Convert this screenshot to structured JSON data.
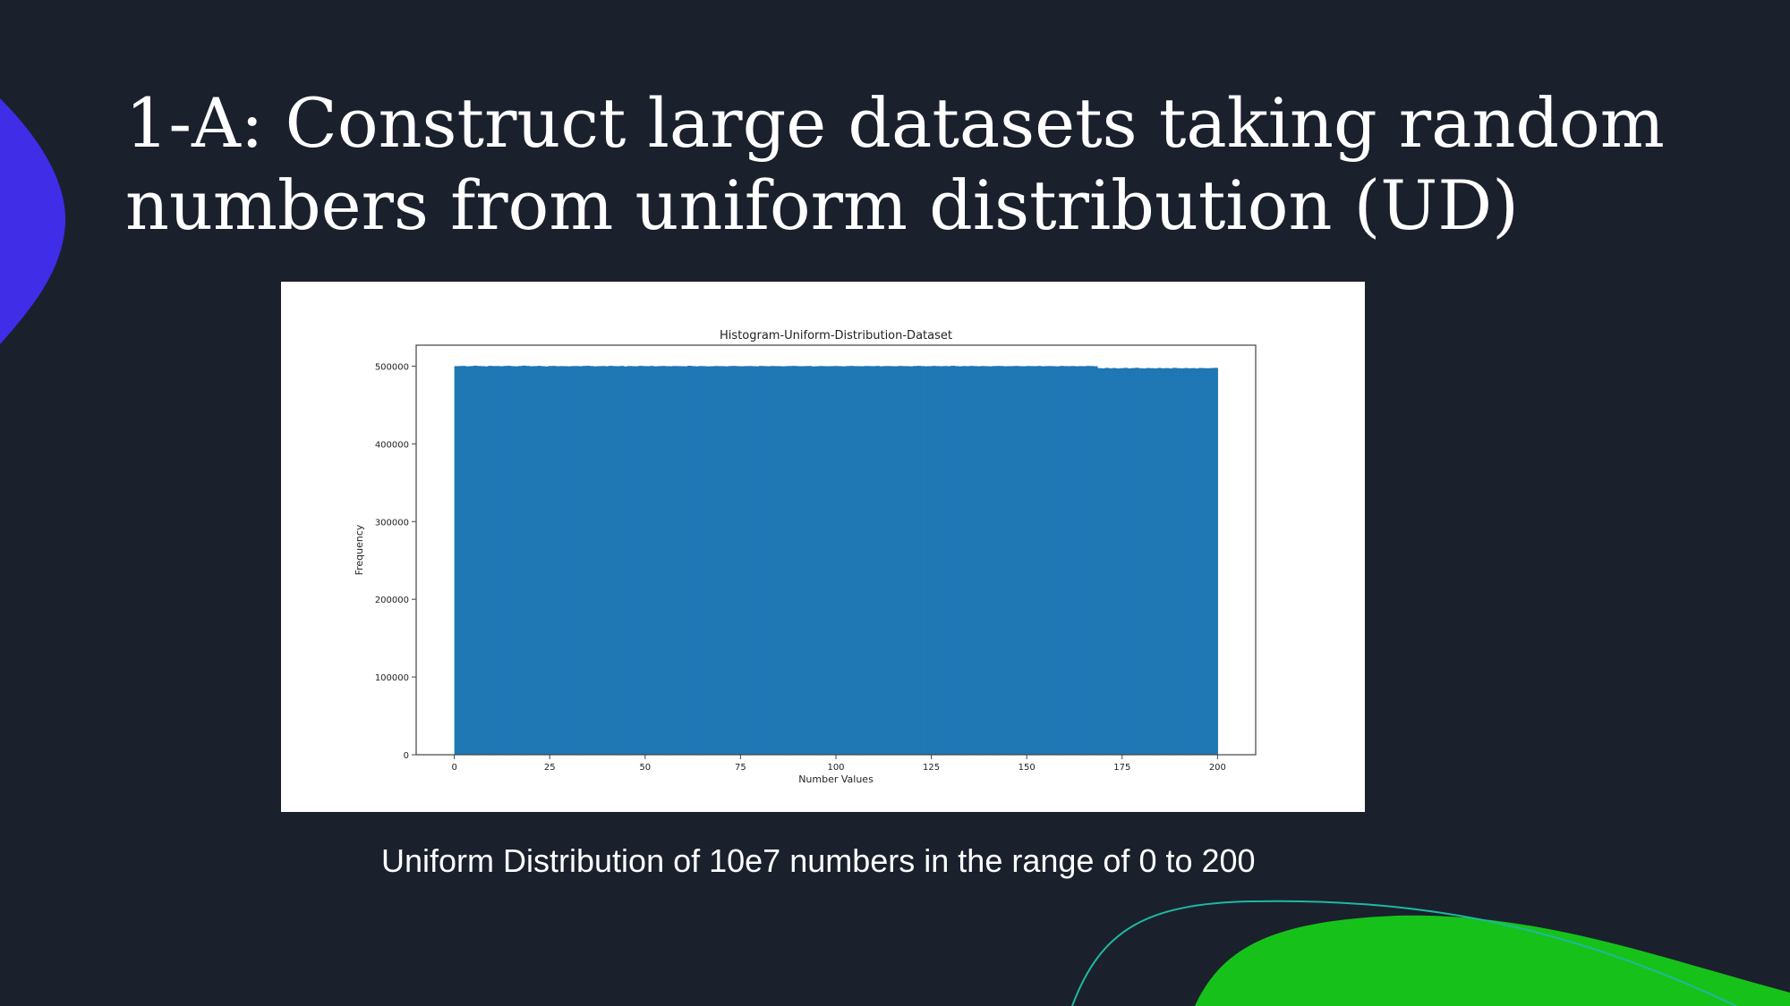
{
  "slide": {
    "title": "1-A: Construct large datasets taking random numbers from uniform distribution (UD)",
    "caption": "Uniform Distribution of 10e7 numbers in the range of 0 to 200",
    "colors": {
      "background": "#1b202d",
      "blob_left": "#3f2de8",
      "blob_bottom_right": "#16c21a",
      "accent_line": "#1fb8a0"
    }
  },
  "chart_data": {
    "type": "bar",
    "title": "Histogram-Uniform-Distribution-Dataset",
    "xlabel": "Number Values",
    "ylabel": "Frequency",
    "xlim": [
      -10,
      210
    ],
    "ylim": [
      0,
      527000
    ],
    "x_ticks": [
      0,
      25,
      50,
      75,
      100,
      125,
      150,
      175,
      200
    ],
    "y_ticks": [
      0,
      100000,
      200000,
      300000,
      400000,
      500000
    ],
    "bar_color": "#1f77b4",
    "bins": 200,
    "bin_range": [
      0,
      200
    ],
    "values": [
      500000,
      500200,
      500300,
      499800,
      500100,
      500600,
      500200,
      500000,
      499700,
      500400,
      500100,
      500200,
      499900,
      500300,
      500500,
      500000,
      499800,
      500200,
      500700,
      500300,
      499900,
      500100,
      500400,
      500000,
      499600,
      500200,
      500300,
      499900,
      500100,
      500000,
      499800,
      500100,
      500200,
      499900,
      500300,
      500500,
      500100,
      499800,
      500000,
      500200,
      499900,
      500400,
      500100,
      500000,
      500300,
      499700,
      500200,
      500000,
      499900,
      500400,
      500100,
      500000,
      500300,
      499800,
      500100,
      500300,
      500000,
      499900,
      500200,
      500100,
      500000,
      499900,
      500500,
      500100,
      499800,
      500200,
      500000,
      499700,
      499900,
      500200,
      500100,
      500000,
      499800,
      500200,
      500300,
      500000,
      499900,
      500100,
      500200,
      500000,
      499800,
      500300,
      500100,
      499900,
      500200,
      500100,
      500000,
      499800,
      500100,
      500200,
      500300,
      500000,
      499900,
      500100,
      500200,
      499700,
      499900,
      500200,
      500000,
      499900,
      500100,
      500200,
      500000,
      499800,
      500100,
      500300,
      500100,
      500000,
      499900,
      500200,
      500100,
      500000,
      500300,
      499800,
      500100,
      500200,
      500000,
      499900,
      500300,
      500100,
      500000,
      499800,
      500200,
      500400,
      500100,
      499900,
      500000,
      500300,
      500100,
      499900,
      500200,
      500000,
      500500,
      500100,
      499800,
      500200,
      500000,
      500300,
      500100,
      499900,
      500200,
      500000,
      499800,
      500100,
      500300,
      500200,
      499900,
      500000,
      500100,
      500300,
      500000,
      499900,
      500200,
      500100,
      500000,
      500300,
      499900,
      500100,
      500200,
      500000,
      499800,
      500300,
      500100,
      500000,
      500200,
      499900,
      500100,
      500000,
      500300,
      500200,
      499900,
      497500,
      497200,
      497800,
      497300,
      497600,
      497100,
      497400,
      497800,
      497200,
      497500,
      497900,
      497300,
      497100,
      497600,
      497400,
      497200,
      497700,
      497300,
      497500,
      497100,
      497800,
      497400,
      497200,
      497600,
      497300,
      497500,
      497100,
      497700,
      497400,
      497300,
      497600,
      497800
    ]
  }
}
